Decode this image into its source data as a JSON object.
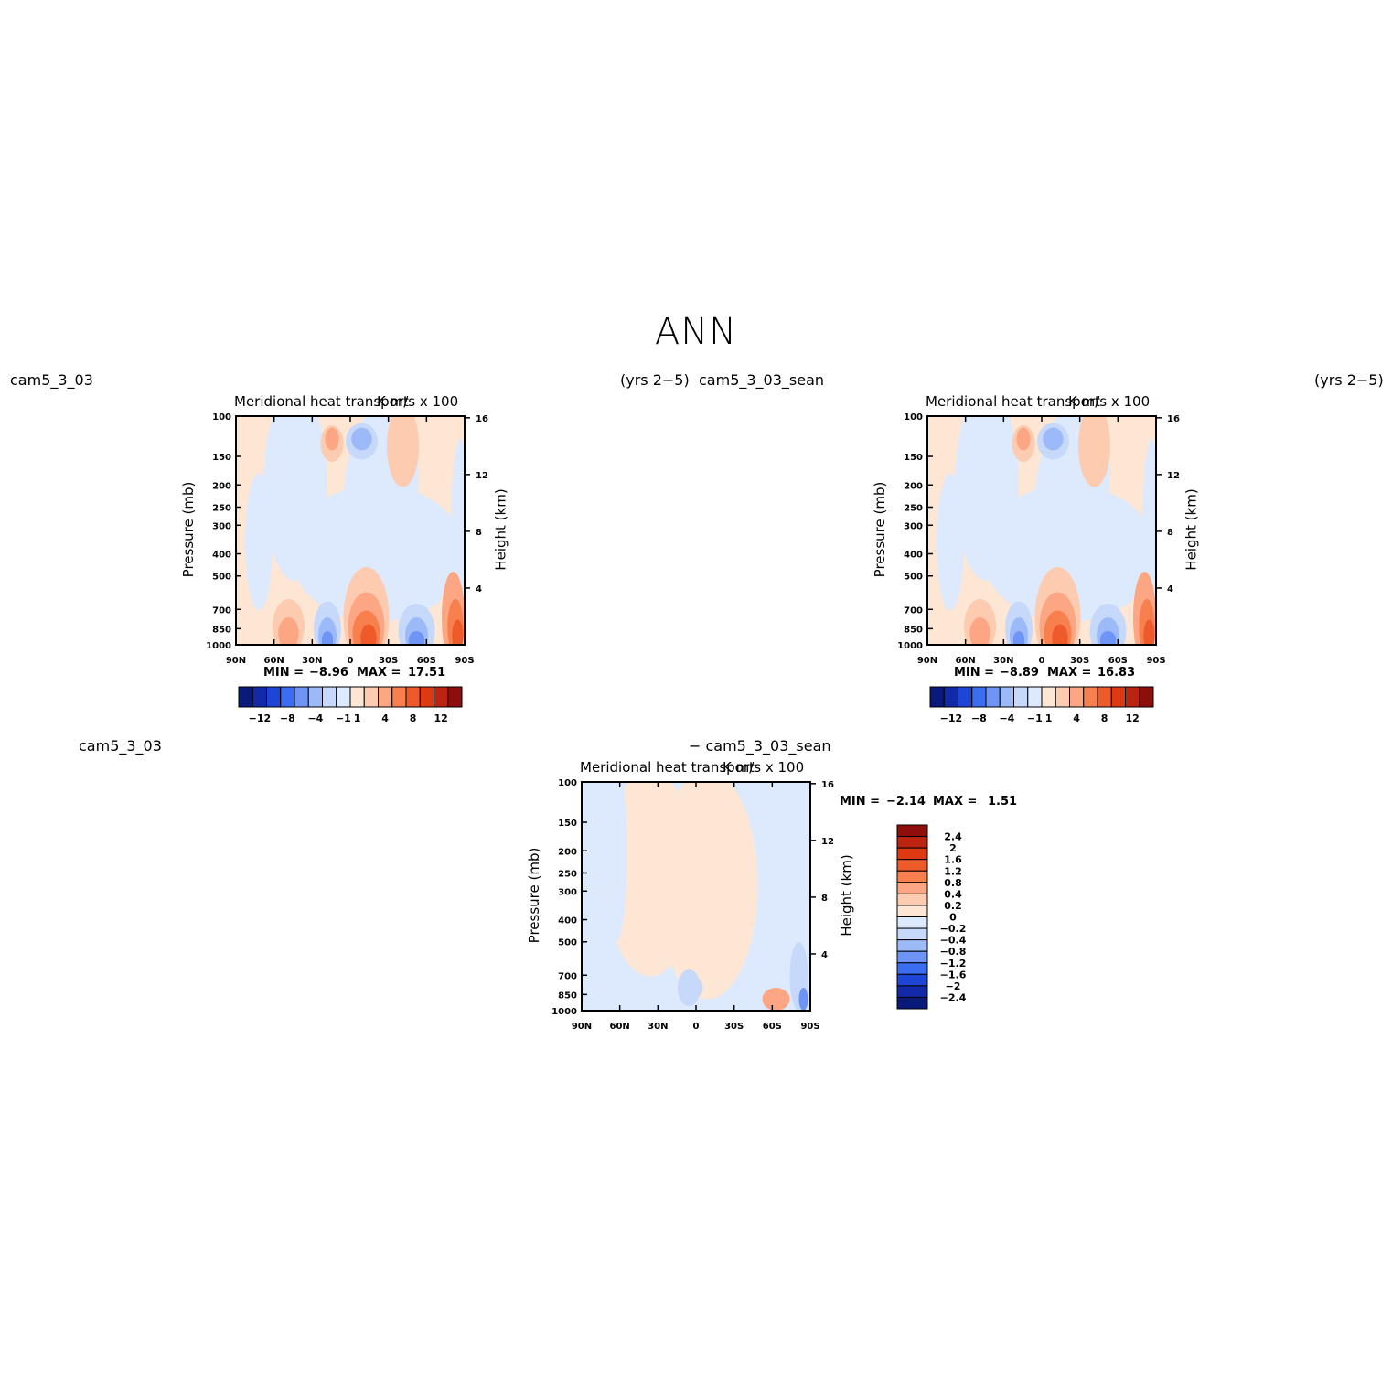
{
  "page_title": "ANN",
  "panels": [
    {
      "id": "p1",
      "left_label": "cam5_3_03",
      "right_label": "(yrs 2−5)",
      "variable": "Meridional heat transport",
      "units": "K m/s x 100",
      "y_label": "Pressure (mb)",
      "y2_label": "Height (km)",
      "stats": {
        "min_label": "MIN =",
        "min": "−8.96",
        "max_label": "MAX =",
        "max": "17.51"
      }
    },
    {
      "id": "p2",
      "left_label": "cam5_3_03_sean",
      "right_label": "(yrs 2−5)",
      "variable": "Meridional heat transport",
      "units": "K m/s x 100",
      "y_label": "Pressure (mb)",
      "y2_label": "Height (km)",
      "stats": {
        "min_label": "MIN =",
        "min": "−8.89",
        "max_label": "MAX =",
        "max": "16.83"
      }
    },
    {
      "id": "p3",
      "left_label": "cam5_3_03",
      "right_label": "− cam5_3_03_sean",
      "variable": "Meridional heat transport",
      "units": "K m/s x 100",
      "y_label": "Pressure (mb)",
      "y2_label": "Height (km)",
      "stats": {
        "min_label": "MIN =",
        "min": "−2.14",
        "max_label": "MAX =",
        "max": "1.51"
      }
    }
  ],
  "chart_data": [
    {
      "type": "heatmap",
      "title": "Meridional heat transport",
      "units": "K m/s x 100",
      "xlabel": "",
      "ylabel": "Pressure (mb)",
      "y2label": "Height (km)",
      "x_ticks": [
        "90N",
        "60N",
        "30N",
        "0",
        "30S",
        "60S",
        "90S"
      ],
      "y_ticks": [
        "100",
        "150",
        "200",
        "250",
        "300",
        "400",
        "500",
        "700",
        "850",
        "1000"
      ],
      "y2_ticks": [
        "16",
        "12",
        "8",
        "4"
      ],
      "y_scale": "log-pressure",
      "ylim": [
        1000,
        100
      ],
      "min": -8.96,
      "max": 17.51,
      "contour_levels": [
        -12,
        -10,
        -8,
        -6,
        -4,
        -2,
        -1,
        -0.5,
        0.5,
        1,
        2,
        4,
        6,
        8,
        10,
        12
      ],
      "colorbar_labels": [
        "−12",
        "−8",
        "−4",
        "−1",
        "1",
        "4",
        "8",
        "12"
      ],
      "colorbar_orientation": "horizontal",
      "colors": [
        "#0a1a7a",
        "#122aa8",
        "#1f45d6",
        "#3a6df0",
        "#6e95f5",
        "#9dbaf8",
        "#c6d9fb",
        "#dde9fd",
        "#fee6d5",
        "#fdcbb0",
        "#fca683",
        "#f8804f",
        "#ef5a2a",
        "#dd3a14",
        "#bb2410",
        "#8d0e0b"
      ]
    },
    {
      "type": "heatmap",
      "title": "Meridional heat transport",
      "units": "K m/s x 100",
      "xlabel": "",
      "ylabel": "Pressure (mb)",
      "y2label": "Height (km)",
      "x_ticks": [
        "90N",
        "60N",
        "30N",
        "0",
        "30S",
        "60S",
        "90S"
      ],
      "y_ticks": [
        "100",
        "150",
        "200",
        "250",
        "300",
        "400",
        "500",
        "700",
        "850",
        "1000"
      ],
      "y2_ticks": [
        "16",
        "12",
        "8",
        "4"
      ],
      "y_scale": "log-pressure",
      "ylim": [
        1000,
        100
      ],
      "min": -8.89,
      "max": 16.83,
      "contour_levels": [
        -12,
        -10,
        -8,
        -6,
        -4,
        -2,
        -1,
        -0.5,
        0.5,
        1,
        2,
        4,
        6,
        8,
        10,
        12
      ],
      "colorbar_labels": [
        "−12",
        "−8",
        "−4",
        "−1",
        "1",
        "4",
        "8",
        "12"
      ],
      "colorbar_orientation": "horizontal",
      "colors": [
        "#0a1a7a",
        "#122aa8",
        "#1f45d6",
        "#3a6df0",
        "#6e95f5",
        "#9dbaf8",
        "#c6d9fb",
        "#dde9fd",
        "#fee6d5",
        "#fdcbb0",
        "#fca683",
        "#f8804f",
        "#ef5a2a",
        "#dd3a14",
        "#bb2410",
        "#8d0e0b"
      ]
    },
    {
      "type": "heatmap",
      "title": "Meridional heat transport",
      "units": "K m/s x 100",
      "xlabel": "",
      "ylabel": "Pressure (mb)",
      "y2label": "Height (km)",
      "x_ticks": [
        "90N",
        "60N",
        "30N",
        "0",
        "30S",
        "60S",
        "90S"
      ],
      "y_ticks": [
        "100",
        "150",
        "200",
        "250",
        "300",
        "400",
        "500",
        "700",
        "850",
        "1000"
      ],
      "y2_ticks": [
        "16",
        "12",
        "8",
        "4"
      ],
      "y_scale": "log-pressure",
      "ylim": [
        1000,
        100
      ],
      "min": -2.14,
      "max": 1.51,
      "contour_levels": [
        -2.4,
        -2,
        -1.6,
        -1.2,
        -0.8,
        -0.4,
        -0.2,
        0,
        0.2,
        0.4,
        0.8,
        1.2,
        1.6,
        2,
        2.4
      ],
      "colorbar_labels": [
        "2.4",
        "2",
        "1.6",
        "1.2",
        "0.8",
        "0.4",
        "0.2",
        "0",
        "−0.2",
        "−0.4",
        "−0.8",
        "−1.2",
        "−1.6",
        "−2",
        "−2.4"
      ],
      "colorbar_orientation": "vertical",
      "colors": [
        "#8d0e0b",
        "#bb2410",
        "#dd3a14",
        "#ef5a2a",
        "#f8804f",
        "#fca683",
        "#fdcbb0",
        "#fee6d5",
        "#dde9fd",
        "#c6d9fb",
        "#9dbaf8",
        "#6e95f5",
        "#3a6df0",
        "#1f45d6",
        "#122aa8",
        "#0a1a7a"
      ]
    }
  ]
}
